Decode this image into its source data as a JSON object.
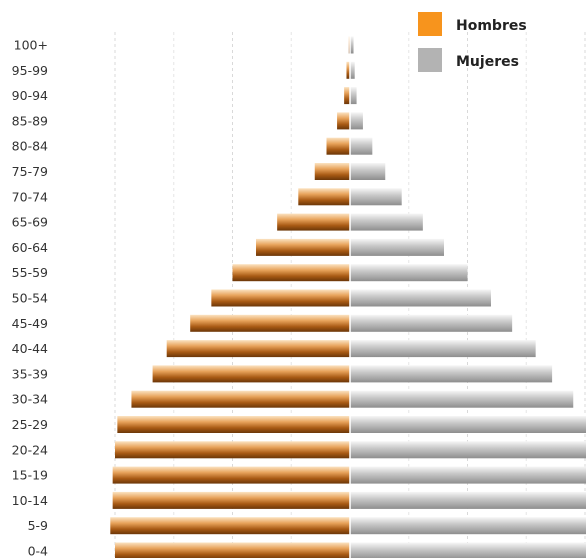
{
  "chart_data": {
    "type": "bar",
    "orientation": "horizontal",
    "layout": "population-pyramid",
    "categories": [
      "100+",
      "95-99",
      "90-94",
      "85-89",
      "80-84",
      "75-79",
      "70-74",
      "65-69",
      "60-64",
      "55-59",
      "50-54",
      "45-49",
      "40-44",
      "35-39",
      "30-34",
      "25-29",
      "20-24",
      "15-19",
      "10-14",
      "5-9",
      "0-4"
    ],
    "series": [
      {
        "name": "Hombres",
        "side": "left",
        "color": "#f7941d",
        "values": [
          0.05,
          0.15,
          0.25,
          0.55,
          1.0,
          1.5,
          2.2,
          3.1,
          4.0,
          5.0,
          5.9,
          6.8,
          7.8,
          8.4,
          9.3,
          9.9,
          10.0,
          10.1,
          10.1,
          10.2,
          10.0
        ]
      },
      {
        "name": "Mujeres",
        "side": "right",
        "color": "#b3b3b3",
        "values": [
          0.15,
          0.2,
          0.28,
          0.55,
          0.95,
          1.5,
          2.2,
          3.1,
          4.0,
          5.0,
          6.0,
          6.9,
          7.9,
          8.6,
          9.5,
          10.1,
          10.2,
          10.2,
          10.2,
          10.2,
          10.3
        ]
      }
    ],
    "xlim": [
      -10.3,
      10.3
    ],
    "grid": true,
    "legend_position": "top-right"
  },
  "legend": {
    "items": [
      {
        "label": "Hombres",
        "color": "#f7941d"
      },
      {
        "label": "Mujeres",
        "color": "#b3b3b3"
      }
    ]
  }
}
